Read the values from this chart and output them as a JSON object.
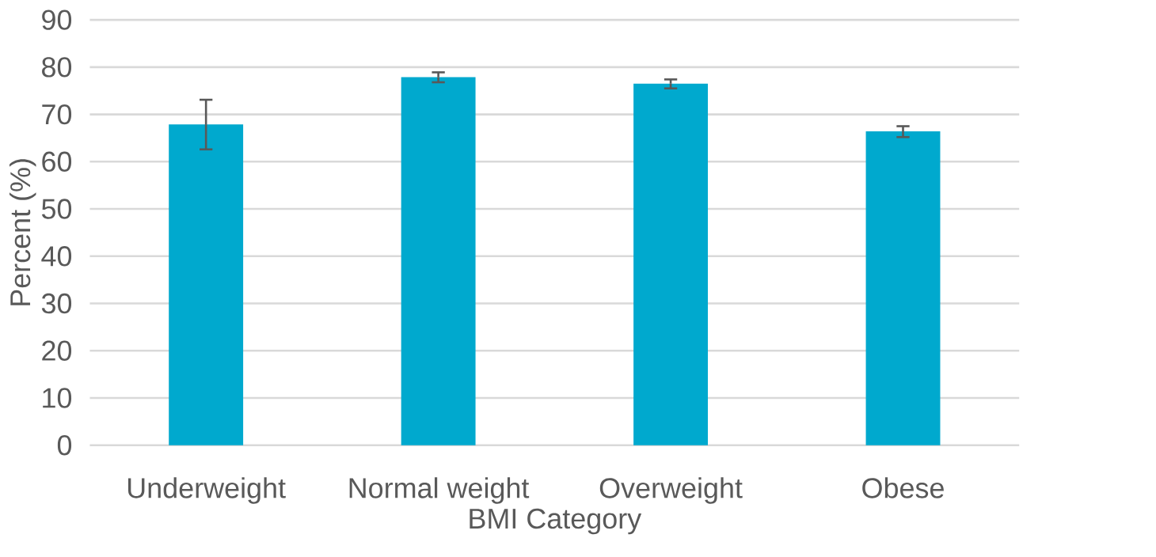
{
  "chart_data": {
    "type": "bar",
    "xlabel": "BMI Category",
    "ylabel": "Percent (%)",
    "categories": [
      "Underweight",
      "Normal weight",
      "Overweight",
      "Obese"
    ],
    "values": [
      67.9,
      77.9,
      76.5,
      66.4
    ],
    "errors": [
      [
        62.6,
        73.1
      ],
      [
        76.8,
        78.9
      ],
      [
        75.5,
        77.4
      ],
      [
        65.2,
        67.5
      ]
    ],
    "color": "#00a9ce",
    "ylim": [
      0,
      90
    ],
    "yticks": [
      0,
      10,
      20,
      30,
      40,
      50,
      60,
      70,
      80,
      90
    ],
    "grid": "y"
  }
}
